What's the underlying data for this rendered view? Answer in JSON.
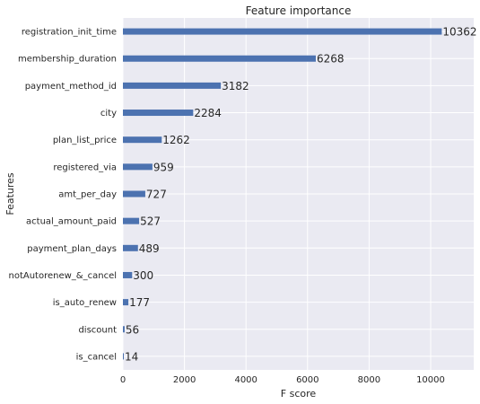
{
  "chart_data": {
    "type": "bar",
    "orientation": "horizontal",
    "title": "Feature importance",
    "xlabel": "F score",
    "ylabel": "Features",
    "categories": [
      "registration_init_time",
      "membership_duration",
      "payment_method_id",
      "city",
      "plan_list_price",
      "registered_via",
      "amt_per_day",
      "actual_amount_paid",
      "payment_plan_days",
      "notAutorenew_&_cancel",
      "is_auto_renew",
      "discount",
      "is_cancel"
    ],
    "values": [
      10362,
      6268,
      3182,
      2284,
      1262,
      959,
      727,
      527,
      489,
      300,
      177,
      56,
      14
    ],
    "xlim": [
      0,
      11400
    ],
    "xticks": [
      0,
      2000,
      4000,
      6000,
      8000,
      10000
    ],
    "grid": true,
    "colors": {
      "bar": "#4c72b0",
      "plot_background": "#eaeaf2",
      "grid": "#ffffff",
      "text": "#262626"
    }
  }
}
